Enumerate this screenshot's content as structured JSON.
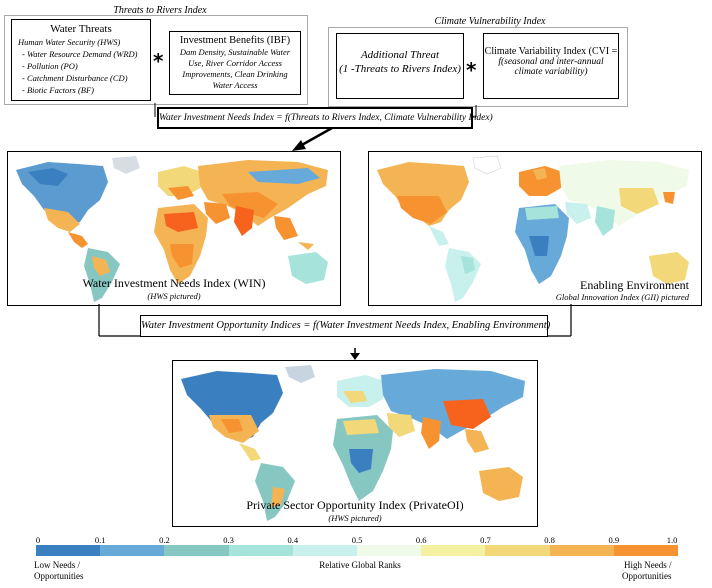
{
  "threats_group": {
    "title": "Threats to Rivers Index",
    "water_threats": {
      "title": "Water Threats",
      "items": [
        "Human Water Security (HWS)",
        "- Water Resource Demand (WRD)",
        "- Pollution (PO)",
        "- Catchment Disturbance (CD)",
        "- Biotic Factors (BF)"
      ]
    },
    "operator": "*",
    "investment_benefits": {
      "title": "Investment Benefits (IBF)",
      "text": "Dam Density, Sustainable Water Use, River Corridor Access Improvements, Clean Drinking Water Access"
    }
  },
  "climate_group": {
    "title": "Climate Vulnerability Index",
    "additional_threat": {
      "line1": "Additional Threat",
      "line2": "(1 -Threats to Rivers Index)"
    },
    "operator": "*",
    "cvi": {
      "line1": "Climate Variability Index (CVI =",
      "line2": "f(seasonal and inter-annual",
      "line3": "climate variability)"
    }
  },
  "win_formula": "Water Investment Needs Index = f(Threats to Rivers Index, Climate Vulnerability Index)",
  "map_win": {
    "caption": "Water Investment Needs Index (WIN)",
    "subcaption": "(HWS pictured)"
  },
  "map_enabling": {
    "caption": "Enabling Environment",
    "subcaption": "Global Innovation Index (GII) pictured"
  },
  "opportunity_formula": "Water Investment Opportunity Indices = f(Water Investment Needs Index, Enabling Environment)",
  "map_private": {
    "caption": "Private Sector Opportunity Index (PrivateOI)",
    "subcaption": "(HWS pictured)"
  },
  "legend": {
    "ticks": [
      "0",
      "0.1",
      "0.2",
      "0.3",
      "0.4",
      "0.5",
      "0.6",
      "0.7",
      "0.8",
      "0.9",
      "1.0"
    ],
    "colors": [
      "#3a7fc0",
      "#67a9d8",
      "#86c7c2",
      "#a6e3da",
      "#c8f0ec",
      "#effbe8",
      "#f4f2a0",
      "#f2d878",
      "#f5b454",
      "#f79230",
      "#f7621c"
    ],
    "low_label_1": "Low Needs /",
    "low_label_2": "Opportunities",
    "center_label": "Relative Global Ranks",
    "high_label_1": "High Needs /",
    "high_label_2": "Opportunities"
  }
}
